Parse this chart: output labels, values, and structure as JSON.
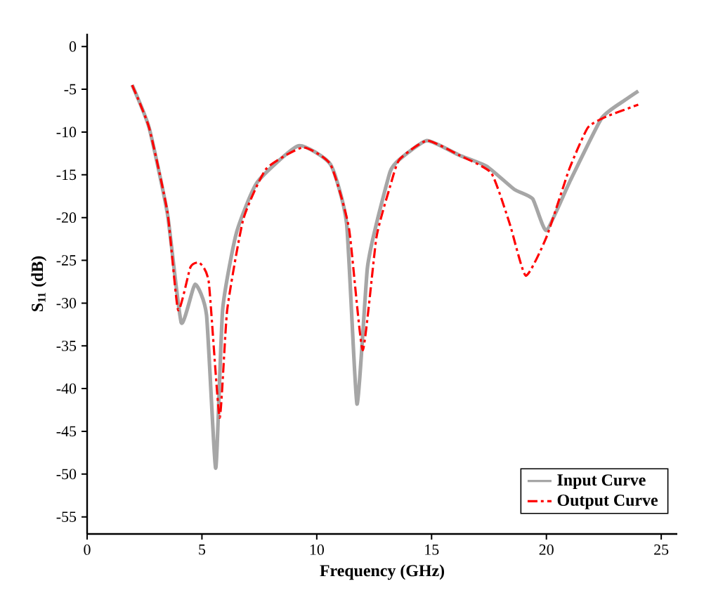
{
  "chart_data": {
    "type": "line",
    "xlabel": "Frequency (GHz)",
    "ylabel": "S$_{11}$ (dB)",
    "xlim": [
      0,
      25.7
    ],
    "ylim": [
      -57,
      1.5
    ],
    "xticks": [
      0,
      5,
      10,
      15,
      20,
      25
    ],
    "yticks": [
      0,
      -5,
      -10,
      -15,
      -20,
      -25,
      -30,
      -35,
      -40,
      -45,
      -50,
      -55
    ],
    "grid": false,
    "legend": "bottom right",
    "marker": "none",
    "series": [
      {
        "name": "Input Curve",
        "color": "#a6a6a6",
        "line_style": "solid",
        "x": [
          1.96,
          2.7,
          3.5,
          4.1,
          4.7,
          5.2,
          5.6,
          5.9,
          6.5,
          7.4,
          9.2,
          10.6,
          11.3,
          11.75,
          12.2,
          12.6,
          13.2,
          13.6,
          14.8,
          16.2,
          17.4,
          18.6,
          19.4,
          20,
          21,
          22.4,
          23.4,
          24
        ],
        "values": [
          -4.5,
          -9.5,
          -19.6,
          -32.3,
          -27.8,
          -31.4,
          -49.3,
          -30.8,
          -21.8,
          -15.9,
          -11.6,
          -13.8,
          -20.7,
          -41.8,
          -26,
          -20.7,
          -14.6,
          -13.2,
          -11,
          -12.7,
          -14,
          -16.7,
          -17.8,
          -21.5,
          -15.9,
          -8.4,
          -6.3,
          -5.2
        ]
      },
      {
        "name": "Output Curve",
        "color": "#ff0000",
        "line_style": "dashdot",
        "x": [
          1.96,
          2.7,
          3.5,
          3.96,
          4.5,
          4.9,
          5.3,
          5.77,
          6.1,
          6.8,
          7.8,
          9.4,
          10.6,
          11.4,
          12.0,
          12.6,
          13.2,
          13.6,
          14.8,
          16.2,
          17.6,
          18.4,
          19.1,
          20,
          21,
          21.8,
          22.6,
          24
        ],
        "values": [
          -4.5,
          -9.5,
          -19.4,
          -30.8,
          -25.8,
          -25.3,
          -27.6,
          -43.4,
          -30.8,
          -20.2,
          -14.3,
          -11.8,
          -13.8,
          -21.2,
          -35.5,
          -22.3,
          -16.3,
          -13.2,
          -11,
          -12.7,
          -14.8,
          -20.7,
          -26.8,
          -22.3,
          -14.3,
          -9.5,
          -8.2,
          -6.8
        ]
      }
    ]
  }
}
